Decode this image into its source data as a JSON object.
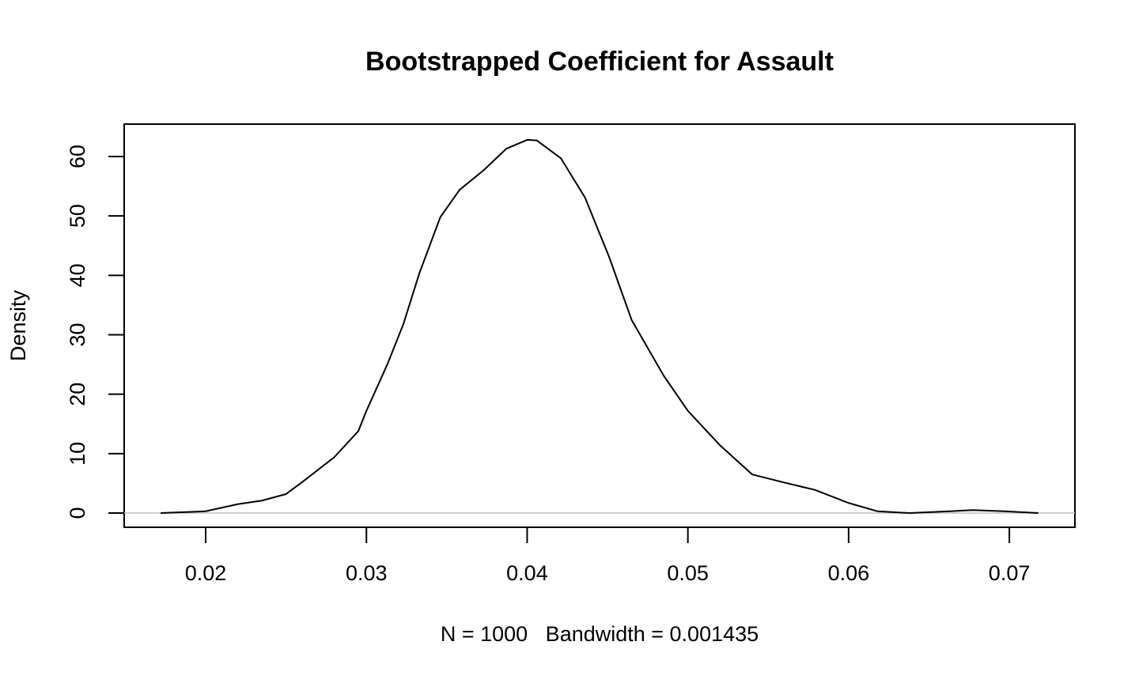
{
  "chart_data": {
    "type": "line",
    "title": "Bootstrapped Coefficient for Assault",
    "xlabel": "N = 1000   Bandwidth = 0.001435",
    "ylabel": "Density",
    "x": [
      0.0172,
      0.02,
      0.022,
      0.0235,
      0.025,
      0.026,
      0.028,
      0.0295,
      0.03,
      0.0313,
      0.0323,
      0.0333,
      0.0346,
      0.0358,
      0.0373,
      0.0387,
      0.04,
      0.0406,
      0.0421,
      0.0436,
      0.0451,
      0.0465,
      0.0485,
      0.05,
      0.052,
      0.054,
      0.0559,
      0.0579,
      0.06,
      0.0618,
      0.0638,
      0.0663,
      0.0677,
      0.0697,
      0.0718
    ],
    "series": [
      {
        "name": "Density",
        "color": "#000000",
        "values": [
          0,
          0.3,
          1.5,
          2.1,
          3.2,
          5.2,
          9.4,
          13.8,
          17.2,
          25,
          31.8,
          40.4,
          49.8,
          54.4,
          57.7,
          61.3,
          62.8,
          62.7,
          59.7,
          53.1,
          43.1,
          32.5,
          23.1,
          17.2,
          11.4,
          6.5,
          5.2,
          3.9,
          1.7,
          0.3,
          0,
          0.3,
          0.5,
          0.3,
          0
        ]
      }
    ],
    "xlim": [
      0.01493,
      0.07408
    ],
    "xticks": [
      0.02,
      0.03,
      0.04,
      0.05,
      0.06,
      0.07
    ],
    "ylim": [
      -2.39,
      65.45
    ],
    "yticks": [
      0,
      10,
      20,
      30,
      40,
      50,
      60
    ],
    "zero_line": true,
    "zero_line_color": "#bebebe",
    "grid": false
  }
}
